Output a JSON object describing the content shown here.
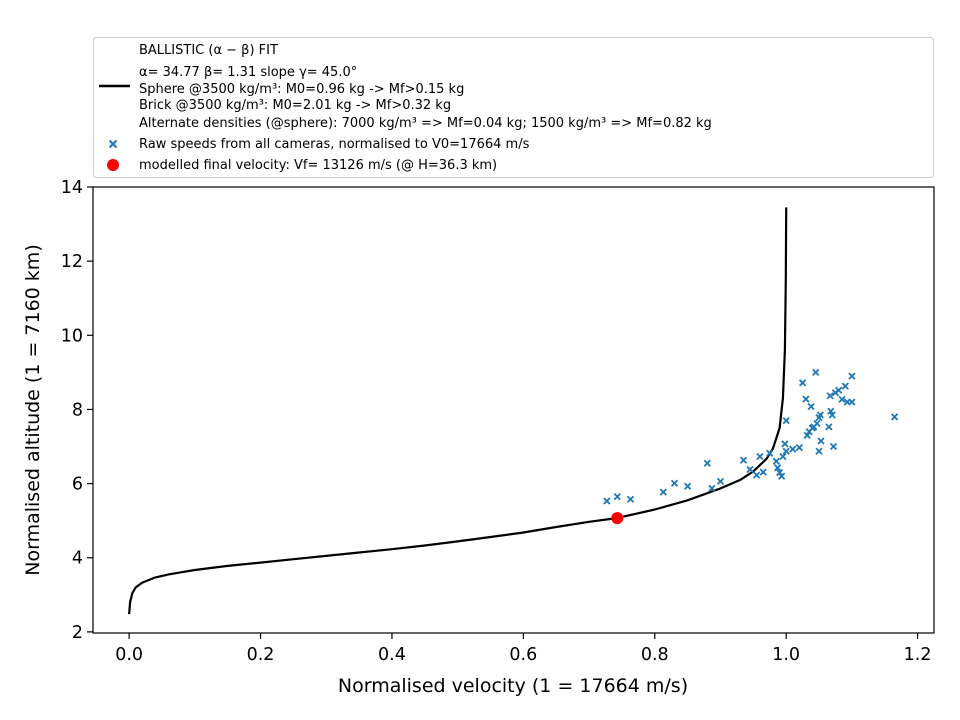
{
  "chart_data": {
    "type": "scatter",
    "xlabel": "Normalised velocity (1 = 17664 m/s)",
    "ylabel": "Normalised altitude (1 = 7160 km)",
    "xlim": [
      -0.055,
      1.225
    ],
    "ylim": [
      1.97,
      14.0
    ],
    "xticks": [
      0.0,
      0.2,
      0.4,
      0.6,
      0.8,
      1.0,
      1.2
    ],
    "xtick_labels": [
      "0.0",
      "0.2",
      "0.4",
      "0.6",
      "0.8",
      "1.0",
      "1.2"
    ],
    "yticks": [
      2,
      4,
      6,
      8,
      10,
      12,
      14
    ],
    "ytick_labels": [
      "2",
      "4",
      "6",
      "8",
      "10",
      "12",
      "14"
    ],
    "grid": false,
    "legend_position": "above plot",
    "legend": {
      "fit_title": "BALLISTIC (α − β) FIT",
      "fit_params": "α= 34.77     β= 1.31     slope γ= 45.0°",
      "fit_sphere": " Sphere @3500 kg/m³: M0=0.96 kg -> Mf>0.15 kg",
      "fit_brick": " Brick @3500 kg/m³: M0=2.01 kg -> Mf>0.32 kg",
      "fit_alt": "Alternate densities (@sphere): 7000 kg/m³ => Mf=0.04 kg; 1500 kg/m³ => Mf=0.82 kg",
      "raw": "Raw speeds from all cameras, normalised to V0=17664 m/s",
      "final": "modelled final velocity: Vf= 13126 m/s (@ H=36.3 km)"
    },
    "series": [
      {
        "name": "BALLISTIC (α − β) FIT",
        "type": "line",
        "color": "#000000",
        "points": [
          [
            0.0,
            2.48
          ],
          [
            0.0015,
            2.8
          ],
          [
            0.005,
            3.05
          ],
          [
            0.01,
            3.2
          ],
          [
            0.02,
            3.33
          ],
          [
            0.04,
            3.47
          ],
          [
            0.06,
            3.55
          ],
          [
            0.08,
            3.61
          ],
          [
            0.1,
            3.67
          ],
          [
            0.15,
            3.78
          ],
          [
            0.2,
            3.87
          ],
          [
            0.25,
            3.96
          ],
          [
            0.3,
            4.05
          ],
          [
            0.35,
            4.14
          ],
          [
            0.4,
            4.23
          ],
          [
            0.45,
            4.33
          ],
          [
            0.5,
            4.44
          ],
          [
            0.55,
            4.56
          ],
          [
            0.6,
            4.68
          ],
          [
            0.65,
            4.83
          ],
          [
            0.7,
            4.97
          ],
          [
            0.742,
            5.07
          ],
          [
            0.8,
            5.3
          ],
          [
            0.85,
            5.55
          ],
          [
            0.9,
            5.87
          ],
          [
            0.93,
            6.1
          ],
          [
            0.95,
            6.33
          ],
          [
            0.97,
            6.67
          ],
          [
            0.98,
            6.95
          ],
          [
            0.99,
            7.5
          ],
          [
            0.995,
            8.3
          ],
          [
            0.998,
            9.6
          ],
          [
            0.9995,
            11.5
          ],
          [
            1.0,
            13.45
          ]
        ]
      },
      {
        "name": "Raw speeds from all cameras, normalised to V0=17664 m/s",
        "type": "scatter",
        "marker": "x",
        "color": "#1f77b4",
        "points": [
          [
            0.727,
            5.53
          ],
          [
            0.743,
            5.65
          ],
          [
            0.763,
            5.58
          ],
          [
            0.813,
            5.77
          ],
          [
            0.83,
            6.01
          ],
          [
            0.85,
            5.93
          ],
          [
            0.88,
            6.55
          ],
          [
            0.887,
            5.87
          ],
          [
            0.9,
            6.06
          ],
          [
            0.935,
            6.63
          ],
          [
            0.945,
            6.38
          ],
          [
            0.955,
            6.23
          ],
          [
            0.96,
            6.73
          ],
          [
            0.965,
            6.31
          ],
          [
            0.975,
            6.82
          ],
          [
            0.985,
            6.6
          ],
          [
            0.987,
            6.43
          ],
          [
            0.99,
            6.3
          ],
          [
            0.993,
            6.2
          ],
          [
            0.995,
            6.73
          ],
          [
            0.998,
            7.07
          ],
          [
            1.0,
            6.87
          ],
          [
            1.0,
            7.7
          ],
          [
            1.01,
            6.93
          ],
          [
            1.02,
            6.97
          ],
          [
            1.025,
            8.72
          ],
          [
            1.03,
            8.28
          ],
          [
            1.032,
            7.3
          ],
          [
            1.035,
            7.4
          ],
          [
            1.038,
            8.08
          ],
          [
            1.04,
            7.5
          ],
          [
            1.042,
            7.53
          ],
          [
            1.045,
            9.0
          ],
          [
            1.047,
            7.62
          ],
          [
            1.05,
            7.78
          ],
          [
            1.05,
            6.87
          ],
          [
            1.052,
            7.85
          ],
          [
            1.053,
            7.15
          ],
          [
            1.065,
            7.53
          ],
          [
            1.067,
            8.37
          ],
          [
            1.068,
            7.95
          ],
          [
            1.07,
            7.85
          ],
          [
            1.072,
            7.0
          ],
          [
            1.075,
            8.45
          ],
          [
            1.08,
            8.52
          ],
          [
            1.085,
            8.27
          ],
          [
            1.09,
            8.63
          ],
          [
            1.093,
            8.2
          ],
          [
            1.1,
            8.2
          ],
          [
            1.1,
            8.9
          ],
          [
            1.165,
            7.8
          ]
        ]
      },
      {
        "name": "modelled final velocity: Vf= 13126 m/s (@ H=36.3 km)",
        "type": "point",
        "color": "#ff0000",
        "points": [
          [
            0.743,
            5.07
          ]
        ]
      }
    ]
  }
}
